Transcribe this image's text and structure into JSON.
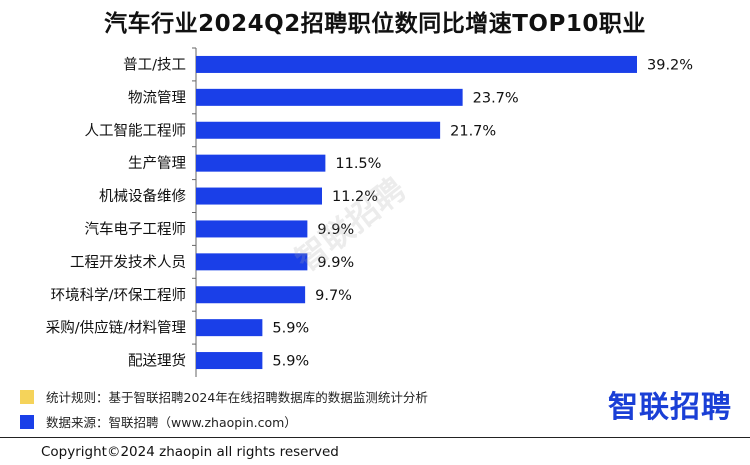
{
  "chart_data": {
    "type": "bar",
    "orientation": "horizontal",
    "title": "汽车行业2024Q2招聘职位数同比增速TOP10职业",
    "categories": [
      "普工/技工",
      "物流管理",
      "人工智能工程师",
      "生产管理",
      "机械设备维修",
      "汽车电子工程师",
      "工程开发技术人员",
      "环境科学/环保工程师",
      "采购/供应链/材料管理",
      "配送理货"
    ],
    "values": [
      39.2,
      23.7,
      21.7,
      11.5,
      11.2,
      9.9,
      9.9,
      9.7,
      5.9,
      5.9
    ],
    "labels": [
      "39.2%",
      "23.7%",
      "21.7%",
      "11.5%",
      "11.2%",
      "9.9%",
      "9.9%",
      "9.7%",
      "5.9%",
      "5.9%"
    ],
    "xlim": [
      0,
      39.2
    ],
    "bar_color": "#1a3fe8",
    "grid": false
  },
  "watermark": "智联招聘",
  "footer": {
    "rule_color": "#f5d35a",
    "rule_text": "统计规则：基于智联招聘2024年在线招聘数据库的数据监测统计分析",
    "source_color": "#1a3fe8",
    "source_text": "数据来源：智联招聘（www.zhaopin.com）",
    "logo": "智联招聘",
    "copyright": "Copyright©2024 zhaopin all rights reserved"
  }
}
